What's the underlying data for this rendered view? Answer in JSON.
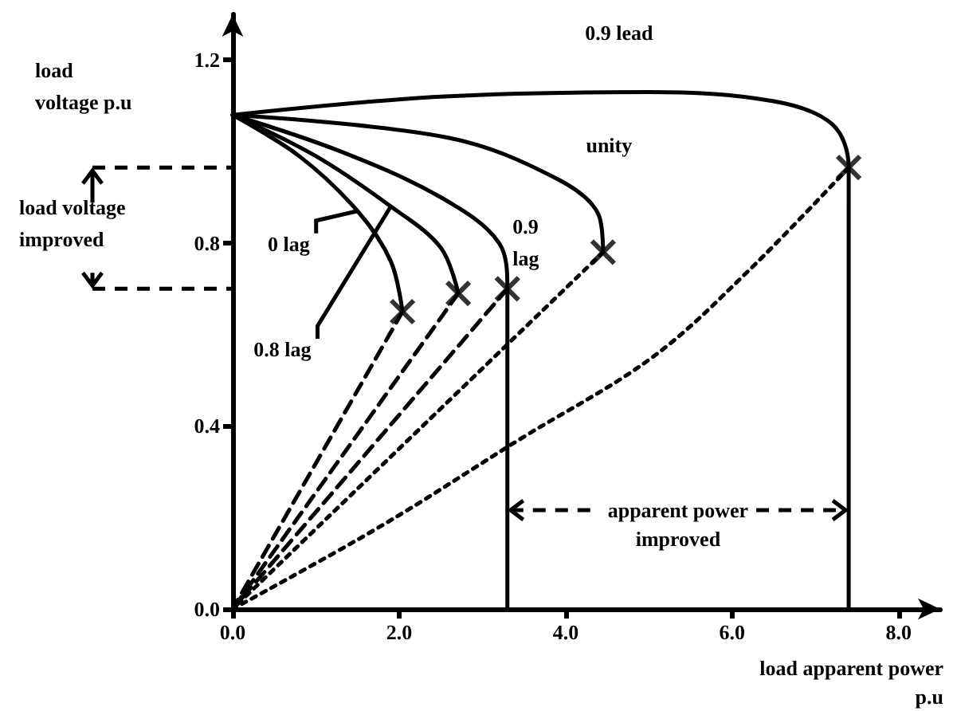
{
  "chart_data": {
    "type": "line",
    "xlabel": "load apparent power p.u",
    "ylabel": "load voltage p.u",
    "xlim": [
      0,
      8.5
    ],
    "xticks": [
      {
        "value": 0,
        "label": "0.0"
      },
      {
        "value": 2,
        "label": "2.0"
      },
      {
        "value": 4,
        "label": "4.0"
      },
      {
        "value": 6,
        "label": "6.0"
      },
      {
        "value": 8,
        "label": "8.0"
      }
    ],
    "ylim": [
      0,
      1.3
    ],
    "yticks": [
      {
        "value": 0,
        "label": "0.0"
      },
      {
        "value": 0.4,
        "label": "0.4"
      },
      {
        "value": 0.8,
        "label": "0.8"
      },
      {
        "value": 1.2,
        "label": "1.2"
      }
    ],
    "grid": false,
    "legend": false,
    "series": [
      {
        "name": "0 lag",
        "color": "#000000",
        "line_style": "solid",
        "x": [
          0,
          0.8,
          1.5,
          1.9,
          2.04
        ],
        "values": [
          1.08,
          0.99,
          0.87,
          0.76,
          0.65
        ]
      },
      {
        "name": "0.8 lag",
        "color": "#000000",
        "line_style": "solid",
        "x": [
          0,
          1.0,
          1.9,
          2.5,
          2.71
        ],
        "values": [
          1.08,
          0.99,
          0.88,
          0.79,
          0.69
        ]
      },
      {
        "name": "0.9 lag",
        "color": "#000000",
        "line_style": "solid",
        "x": [
          0,
          1.3,
          2.5,
          3.2,
          3.3,
          3.3
        ],
        "values": [
          1.08,
          1.0,
          0.9,
          0.8,
          0.7,
          0
        ]
      },
      {
        "name": "unity",
        "color": "#000000",
        "line_style": "solid",
        "x": [
          0,
          2.6,
          3.9,
          4.4,
          4.45
        ],
        "values": [
          1.08,
          1.03,
          0.94,
          0.86,
          0.78
        ]
      },
      {
        "name": "0.9 lead",
        "color": "#000000",
        "line_style": "solid",
        "x": [
          0,
          2.5,
          5,
          6.5,
          7.2,
          7.4,
          7.4
        ],
        "values": [
          1.08,
          1.12,
          1.13,
          1.11,
          1.06,
          0.965,
          0
        ]
      },
      {
        "color": "#000000",
        "line_style": "dashed",
        "x": [
          2.04,
          0
        ],
        "values": [
          0.65,
          0
        ]
      },
      {
        "color": "#000000",
        "line_style": "dashed",
        "x": [
          2.71,
          0
        ],
        "values": [
          0.69,
          0
        ]
      },
      {
        "color": "#000000",
        "line_style": "dashed",
        "x": [
          3.3,
          0
        ],
        "values": [
          0.7,
          0
        ]
      },
      {
        "color": "#000000",
        "line_style": "dotted",
        "x": [
          4.45,
          0
        ],
        "values": [
          0.78,
          0
        ]
      },
      {
        "color": "#000000",
        "line_style": "dotted",
        "x": [
          7.4,
          6.2,
          5.04,
          3.44,
          1.77,
          0
        ],
        "values": [
          0.965,
          0.74,
          0.55,
          0.37,
          0.18,
          0
        ]
      },
      {
        "type": "scatter",
        "marker": "cross",
        "color": "#000000",
        "x": [
          2.04,
          2.71,
          3.3,
          4.45,
          7.4
        ],
        "values": [
          0.65,
          0.69,
          0.7,
          0.78,
          0.965
        ]
      }
    ],
    "annotations": [
      "load voltage improved",
      "apparent power improved"
    ]
  }
}
